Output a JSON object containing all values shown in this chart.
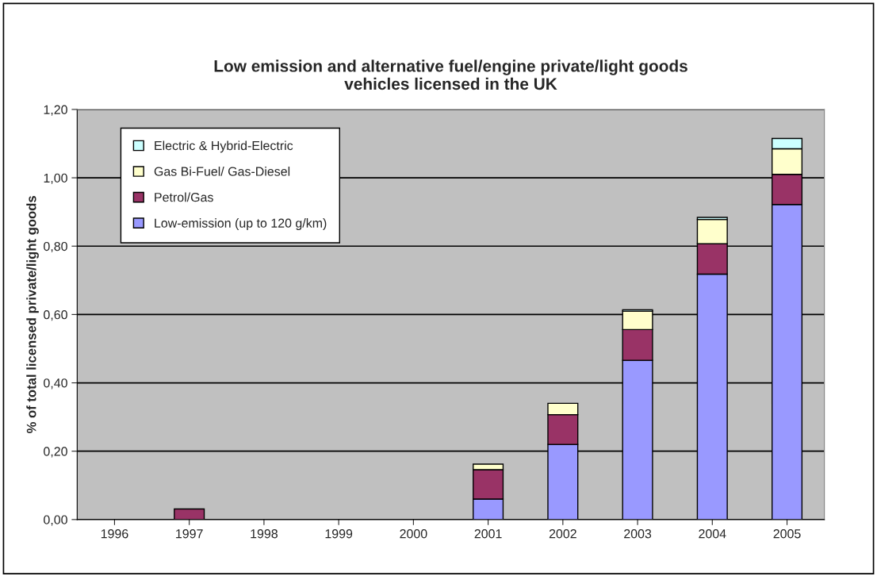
{
  "chart_data": {
    "type": "bar",
    "title": "Low emission and alternative fuel/engine private/light goods\nvehicles licensed in the UK",
    "ylabel": "% of total licensed private/light goods",
    "categories": [
      "1996",
      "1997",
      "1998",
      "1999",
      "2000",
      "2001",
      "2002",
      "2003",
      "2004",
      "2005"
    ],
    "stacked": true,
    "series": [
      {
        "name": "Low-emission (up to 120 g/km)",
        "color": "#9999ff",
        "values": [
          null,
          null,
          null,
          null,
          null,
          0.06,
          0.22,
          0.466,
          0.718,
          0.922
        ]
      },
      {
        "name": "Petrol/Gas",
        "color": "#993366",
        "values": [
          null,
          0.031,
          null,
          null,
          null,
          0.086,
          0.087,
          0.09,
          0.089,
          0.088
        ]
      },
      {
        "name": "Gas Bi-Fuel/ Gas-Diesel",
        "color": "#ffffcc",
        "values": [
          null,
          null,
          null,
          null,
          null,
          0.016,
          0.033,
          0.054,
          0.071,
          0.075
        ]
      },
      {
        "name": "Electric & Hybrid-Electric",
        "color": "#ccffff",
        "values": [
          null,
          null,
          null,
          null,
          null,
          null,
          null,
          0.004,
          0.006,
          0.03
        ]
      }
    ],
    "ylim": [
      0,
      1.2
    ],
    "yticks": [
      {
        "value": 0,
        "label": "0,00"
      },
      {
        "value": 0.2,
        "label": "0,20"
      },
      {
        "value": 0.4,
        "label": "0,40"
      },
      {
        "value": 0.6,
        "label": "0,60"
      },
      {
        "value": 0.8,
        "label": "0,80"
      },
      {
        "value": 1.0,
        "label": "1,00"
      },
      {
        "value": 1.2,
        "label": "1,20"
      }
    ],
    "grid": "y",
    "legend": "top left"
  }
}
